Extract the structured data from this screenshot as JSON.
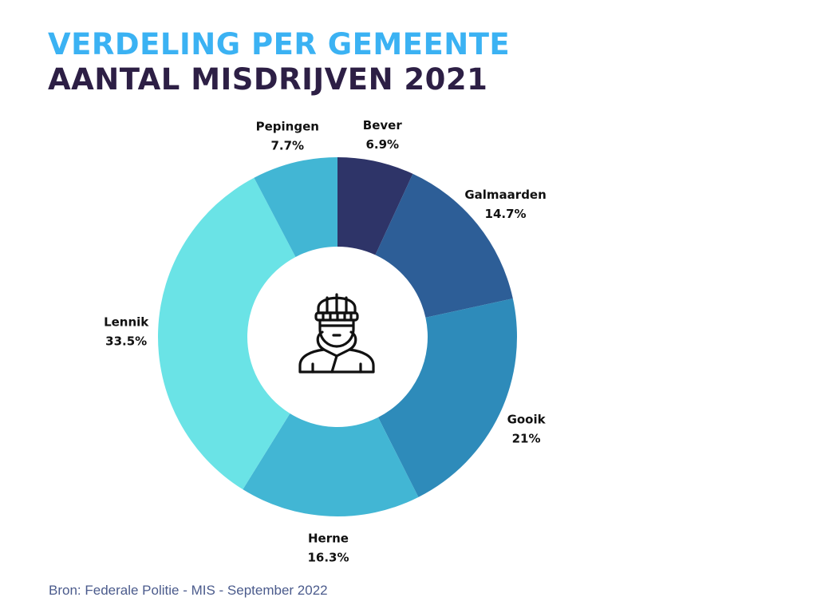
{
  "header": {
    "title": "VERDELING PER GEMEENTE",
    "subtitle": "AANTAL MISDRIJVEN 2021"
  },
  "center_icon": "burglar-icon",
  "footer": {
    "source": "Bron: Federale Politie - MIS - September 2022"
  },
  "chart_data": {
    "type": "pie",
    "variant": "donut",
    "title": "VERDELING PER GEMEENTE",
    "subtitle": "AANTAL MISDRIJVEN 2021",
    "start": "top",
    "direction": "clockwise",
    "legend": "none (direct labels)",
    "slices": [
      {
        "label": "Bever",
        "value": 6.9,
        "display": "6.9%",
        "color": "#2e3468"
      },
      {
        "label": "Galmaarden",
        "value": 14.7,
        "display": "14.7%",
        "color": "#2d5e97"
      },
      {
        "label": "Gooik",
        "value": 21.0,
        "display": "21%",
        "color": "#2e8bba"
      },
      {
        "label": "Herne",
        "value": 16.3,
        "display": "16.3%",
        "color": "#42b6d4"
      },
      {
        "label": "Lennik",
        "value": 33.5,
        "display": "33.5%",
        "color": "#6ae3e6"
      },
      {
        "label": "Pepingen",
        "value": 7.7,
        "display": "7.7%",
        "color": "#42b6d4"
      }
    ]
  }
}
